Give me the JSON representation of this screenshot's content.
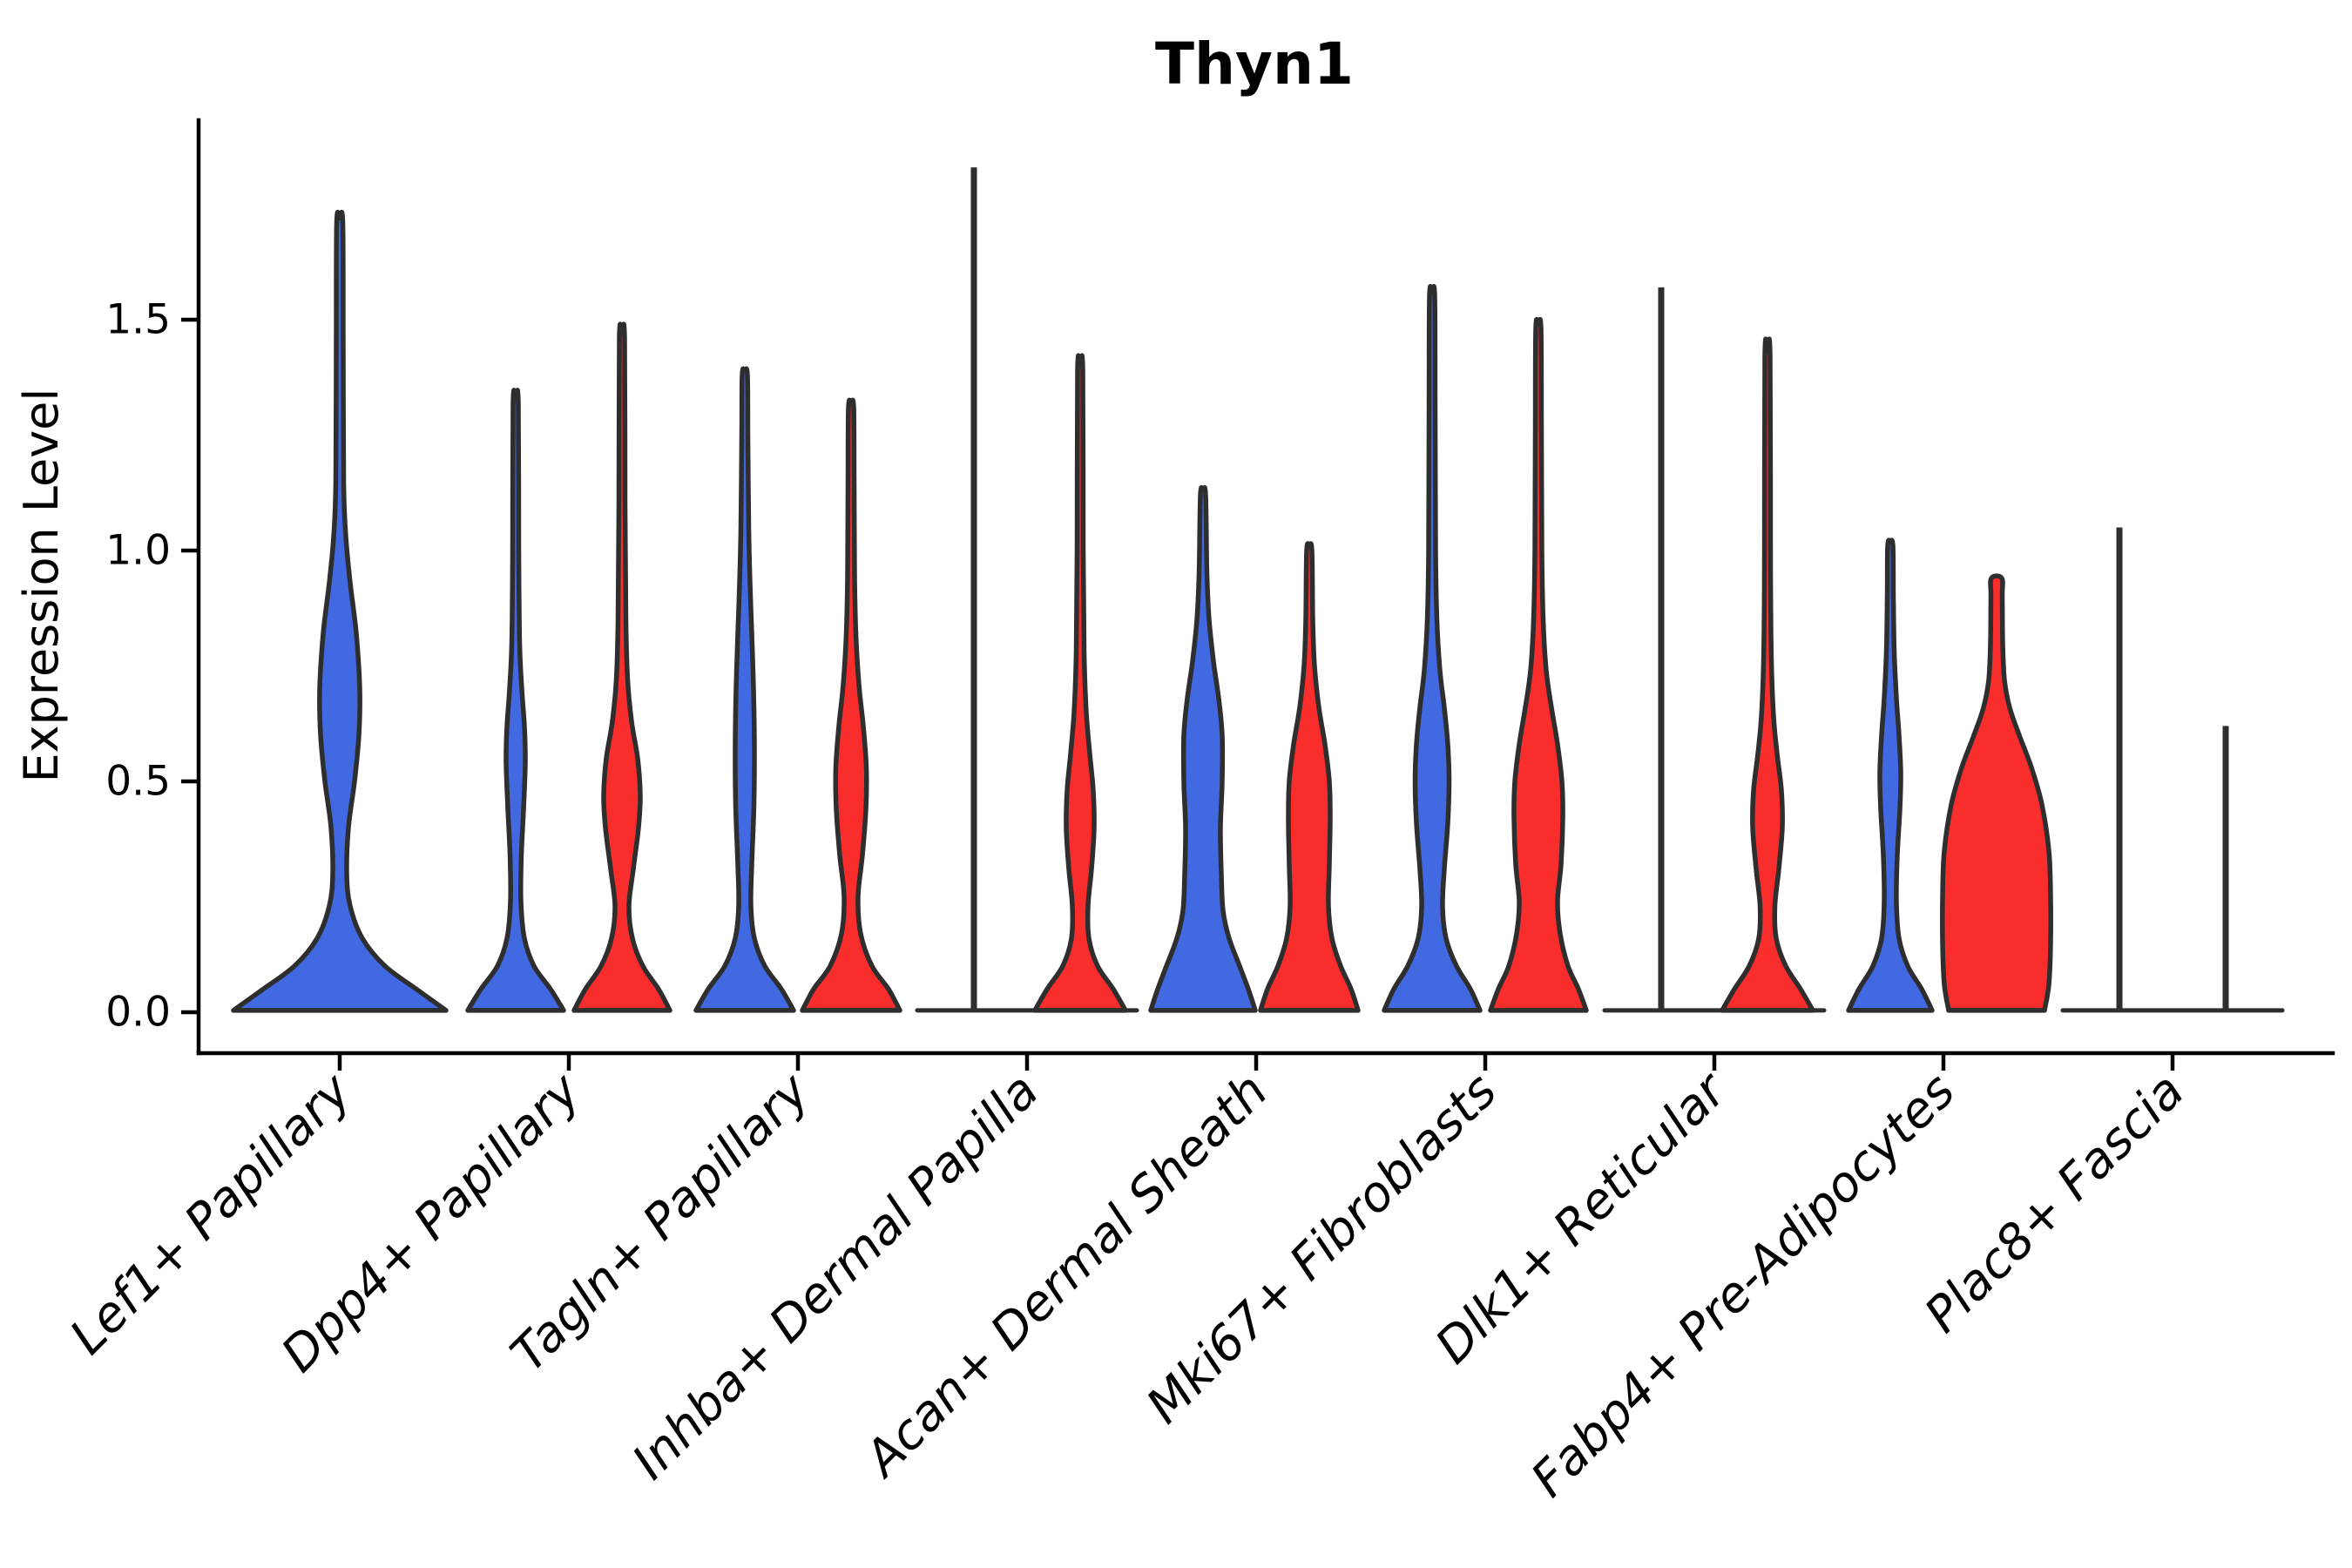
{
  "title": "Thyn1",
  "y_axis": {
    "label": "Expression Level",
    "tick_labels": [
      "0.0",
      "0.5",
      "1.0",
      "1.5"
    ],
    "tick_values": [
      0.0,
      0.5,
      1.0,
      1.5
    ],
    "ylim": [
      -0.09,
      1.93
    ]
  },
  "x_axis": {
    "categories": [
      "Lef1+ Papillary",
      "Dpp4+ Papillary",
      "Tagln+ Papillary",
      "Inhba+ Dermal Papilla",
      "Acan+ Dermal Sheath",
      "Mki67+ Fibroblasts",
      "Dlk1+ Reticular",
      "Fabp4+ Pre-Adipocytes",
      "Plac8+ Fascia"
    ]
  },
  "colors": {
    "group1": "#4169E1",
    "group2": "#FA2D2D",
    "outline": "#2E2E2E",
    "axis": "#000000",
    "background": "#ffffff"
  },
  "chart_data": {
    "type": "violin",
    "title": "Thyn1",
    "xlabel": "",
    "ylabel": "Expression Level",
    "ylim": [
      -0.09,
      1.93
    ],
    "grid": false,
    "legend": "none (two unlabeled split groups: blue group1, red group2)",
    "categories": [
      "Lef1+ Papillary",
      "Dpp4+ Papillary",
      "Tagln+ Papillary",
      "Inhba+ Dermal Papilla",
      "Acan+ Dermal Sheath",
      "Mki67+ Fibroblasts",
      "Dlk1+ Reticular",
      "Fabp4+ Pre-Adipocytes",
      "Plac8+ Fascia"
    ],
    "violins": [
      {
        "category": "Lef1+ Papillary",
        "side": "group1",
        "color": "group1",
        "align": "center",
        "collapsed": false,
        "blunt": false,
        "max_expression": 1.72,
        "profile": [
          [
            0.004,
            122
          ],
          [
            0.05,
            88
          ],
          [
            0.1,
            52
          ],
          [
            0.16,
            26
          ],
          [
            0.23,
            12
          ],
          [
            0.3,
            8
          ],
          [
            0.4,
            10
          ],
          [
            0.5,
            17
          ],
          [
            0.6,
            22
          ],
          [
            0.7,
            23
          ],
          [
            0.82,
            19
          ],
          [
            0.93,
            12
          ],
          [
            1.03,
            7
          ],
          [
            1.15,
            4.5
          ],
          [
            1.45,
            4
          ],
          [
            1.71,
            3.5
          ]
        ]
      },
      {
        "category": "Dpp4+ Papillary",
        "side": "group1",
        "color": "group1",
        "align": "left",
        "collapsed": false,
        "blunt": false,
        "max_expression": 1.33,
        "profile": [
          [
            0.004,
            55
          ],
          [
            0.05,
            40
          ],
          [
            0.1,
            21
          ],
          [
            0.16,
            10
          ],
          [
            0.24,
            6
          ],
          [
            0.34,
            6.5
          ],
          [
            0.44,
            9
          ],
          [
            0.54,
            11
          ],
          [
            0.62,
            10
          ],
          [
            0.7,
            7
          ],
          [
            0.8,
            4.5
          ],
          [
            1.0,
            3.5
          ],
          [
            1.32,
            3
          ]
        ]
      },
      {
        "category": "Dpp4+ Papillary",
        "side": "group2",
        "color": "group2",
        "align": "right",
        "collapsed": false,
        "blunt": false,
        "max_expression": 1.47,
        "profile": [
          [
            0.004,
            55
          ],
          [
            0.05,
            42
          ],
          [
            0.1,
            24
          ],
          [
            0.16,
            12
          ],
          [
            0.23,
            8
          ],
          [
            0.31,
            13
          ],
          [
            0.4,
            19
          ],
          [
            0.47,
            21
          ],
          [
            0.55,
            18
          ],
          [
            0.63,
            11
          ],
          [
            0.72,
            6.5
          ],
          [
            0.85,
            4.5
          ],
          [
            1.1,
            3.5
          ],
          [
            1.46,
            3
          ]
        ]
      },
      {
        "category": "Tagln+ Papillary",
        "side": "group1",
        "color": "group1",
        "align": "left",
        "collapsed": false,
        "blunt": false,
        "max_expression": 1.39,
        "profile": [
          [
            0.004,
            56
          ],
          [
            0.05,
            42
          ],
          [
            0.1,
            23
          ],
          [
            0.16,
            11
          ],
          [
            0.23,
            7
          ],
          [
            0.32,
            8
          ],
          [
            0.45,
            10.5
          ],
          [
            0.58,
            11
          ],
          [
            0.7,
            10
          ],
          [
            0.82,
            8
          ],
          [
            0.93,
            6
          ],
          [
            1.05,
            4.5
          ],
          [
            1.25,
            3.5
          ],
          [
            1.38,
            3
          ]
        ]
      },
      {
        "category": "Tagln+ Papillary",
        "side": "group2",
        "color": "group2",
        "align": "right",
        "collapsed": false,
        "blunt": false,
        "max_expression": 1.32,
        "profile": [
          [
            0.004,
            56
          ],
          [
            0.05,
            43
          ],
          [
            0.1,
            24
          ],
          [
            0.17,
            11
          ],
          [
            0.25,
            8
          ],
          [
            0.34,
            13
          ],
          [
            0.44,
            17
          ],
          [
            0.53,
            17.5
          ],
          [
            0.62,
            14
          ],
          [
            0.71,
            9
          ],
          [
            0.82,
            5.5
          ],
          [
            0.95,
            4
          ],
          [
            1.15,
            3.5
          ],
          [
            1.31,
            3
          ]
        ]
      },
      {
        "category": "Inhba+ Dermal Papilla",
        "side": "group1",
        "color": "group1",
        "align": "left",
        "collapsed": true,
        "blunt": false,
        "max_expression": 1.83,
        "profile": []
      },
      {
        "category": "Inhba+ Dermal Papilla",
        "side": "group2",
        "color": "group2",
        "align": "right",
        "collapsed": false,
        "blunt": false,
        "max_expression": 1.4,
        "profile": [
          [
            0.004,
            52
          ],
          [
            0.05,
            38
          ],
          [
            0.1,
            20
          ],
          [
            0.16,
            10
          ],
          [
            0.23,
            9
          ],
          [
            0.31,
            13
          ],
          [
            0.4,
            16
          ],
          [
            0.48,
            15
          ],
          [
            0.56,
            11
          ],
          [
            0.65,
            7
          ],
          [
            0.78,
            4.5
          ],
          [
            1.0,
            3.5
          ],
          [
            1.39,
            3
          ]
        ]
      },
      {
        "category": "Acan+ Dermal Sheath",
        "side": "group1",
        "color": "group1",
        "align": "left",
        "collapsed": false,
        "blunt": false,
        "max_expression": 1.13,
        "profile": [
          [
            0.004,
            60
          ],
          [
            0.05,
            52
          ],
          [
            0.1,
            42
          ],
          [
            0.16,
            30
          ],
          [
            0.22,
            23
          ],
          [
            0.3,
            21
          ],
          [
            0.4,
            20
          ],
          [
            0.5,
            22
          ],
          [
            0.6,
            22
          ],
          [
            0.68,
            18
          ],
          [
            0.76,
            12
          ],
          [
            0.85,
            7
          ],
          [
            0.95,
            4.5
          ],
          [
            1.12,
            3
          ]
        ]
      },
      {
        "category": "Acan+ Dermal Sheath",
        "side": "group2",
        "color": "group2",
        "align": "right",
        "collapsed": false,
        "blunt": false,
        "max_expression": 1.01,
        "profile": [
          [
            0.004,
            56
          ],
          [
            0.05,
            48
          ],
          [
            0.1,
            36
          ],
          [
            0.16,
            26
          ],
          [
            0.23,
            22
          ],
          [
            0.32,
            23
          ],
          [
            0.42,
            24
          ],
          [
            0.5,
            23
          ],
          [
            0.58,
            18
          ],
          [
            0.66,
            11
          ],
          [
            0.75,
            6
          ],
          [
            0.85,
            4
          ],
          [
            1.0,
            3
          ]
        ]
      },
      {
        "category": "Mki67+ Fibroblasts",
        "side": "group1",
        "color": "group1",
        "align": "left",
        "collapsed": false,
        "blunt": false,
        "max_expression": 1.56,
        "profile": [
          [
            0.004,
            55
          ],
          [
            0.05,
            44
          ],
          [
            0.1,
            28
          ],
          [
            0.16,
            16
          ],
          [
            0.23,
            12
          ],
          [
            0.31,
            14
          ],
          [
            0.41,
            18
          ],
          [
            0.5,
            19.5
          ],
          [
            0.58,
            18
          ],
          [
            0.66,
            14
          ],
          [
            0.74,
            9
          ],
          [
            0.85,
            5.5
          ],
          [
            1.0,
            4
          ],
          [
            1.3,
            3.5
          ],
          [
            1.55,
            3
          ]
        ]
      },
      {
        "category": "Mki67+ Fibroblasts",
        "side": "group2",
        "color": "group2",
        "align": "right",
        "collapsed": false,
        "blunt": false,
        "max_expression": 1.49,
        "profile": [
          [
            0.004,
            55
          ],
          [
            0.05,
            46
          ],
          [
            0.1,
            34
          ],
          [
            0.17,
            25
          ],
          [
            0.24,
            22
          ],
          [
            0.32,
            26
          ],
          [
            0.42,
            28
          ],
          [
            0.5,
            27
          ],
          [
            0.58,
            22
          ],
          [
            0.66,
            15
          ],
          [
            0.74,
            9
          ],
          [
            0.85,
            5.5
          ],
          [
            1.0,
            4
          ],
          [
            1.25,
            3.5
          ],
          [
            1.48,
            3
          ]
        ]
      },
      {
        "category": "Dlk1+ Reticular",
        "side": "group1",
        "color": "group1",
        "align": "left",
        "collapsed": true,
        "blunt": false,
        "max_expression": 1.57,
        "profile": []
      },
      {
        "category": "Dlk1+ Reticular",
        "side": "group2",
        "color": "group2",
        "align": "right",
        "collapsed": false,
        "blunt": false,
        "max_expression": 1.43,
        "profile": [
          [
            0.004,
            52
          ],
          [
            0.05,
            38
          ],
          [
            0.1,
            21
          ],
          [
            0.16,
            10
          ],
          [
            0.23,
            8.5
          ],
          [
            0.31,
            13
          ],
          [
            0.4,
            17
          ],
          [
            0.48,
            16
          ],
          [
            0.56,
            11
          ],
          [
            0.64,
            7
          ],
          [
            0.76,
            4.5
          ],
          [
            0.95,
            3.5
          ],
          [
            1.42,
            3
          ]
        ]
      },
      {
        "category": "Fabp4+ Pre-Adipocytes",
        "side": "group1",
        "color": "group1",
        "align": "left",
        "collapsed": false,
        "blunt": false,
        "max_expression": 1.02,
        "profile": [
          [
            0.004,
            48
          ],
          [
            0.05,
            36
          ],
          [
            0.1,
            20
          ],
          [
            0.16,
            10
          ],
          [
            0.24,
            7
          ],
          [
            0.34,
            8
          ],
          [
            0.44,
            11
          ],
          [
            0.52,
            12
          ],
          [
            0.6,
            10
          ],
          [
            0.68,
            7
          ],
          [
            0.78,
            4.5
          ],
          [
            0.9,
            3.5
          ],
          [
            1.01,
            3
          ]
        ]
      },
      {
        "category": "Fabp4+ Pre-Adipocytes",
        "side": "group2",
        "color": "group2",
        "align": "right",
        "collapsed": false,
        "blunt": true,
        "max_expression": 0.94,
        "profile": [
          [
            0.004,
            55
          ],
          [
            0.06,
            60
          ],
          [
            0.15,
            62
          ],
          [
            0.25,
            62
          ],
          [
            0.35,
            60
          ],
          [
            0.45,
            52
          ],
          [
            0.53,
            40
          ],
          [
            0.6,
            26
          ],
          [
            0.66,
            15
          ],
          [
            0.72,
            9
          ],
          [
            0.8,
            7
          ],
          [
            0.9,
            6.5
          ],
          [
            0.94,
            6
          ]
        ]
      },
      {
        "category": "Plac8+ Fascia",
        "side": "group1",
        "color": "group1",
        "align": "left",
        "collapsed": true,
        "blunt": false,
        "max_expression": 1.05,
        "profile": []
      },
      {
        "category": "Plac8+ Fascia",
        "side": "group2",
        "color": "group2",
        "align": "right",
        "collapsed": true,
        "blunt": false,
        "max_expression": 0.62,
        "profile": []
      }
    ]
  }
}
